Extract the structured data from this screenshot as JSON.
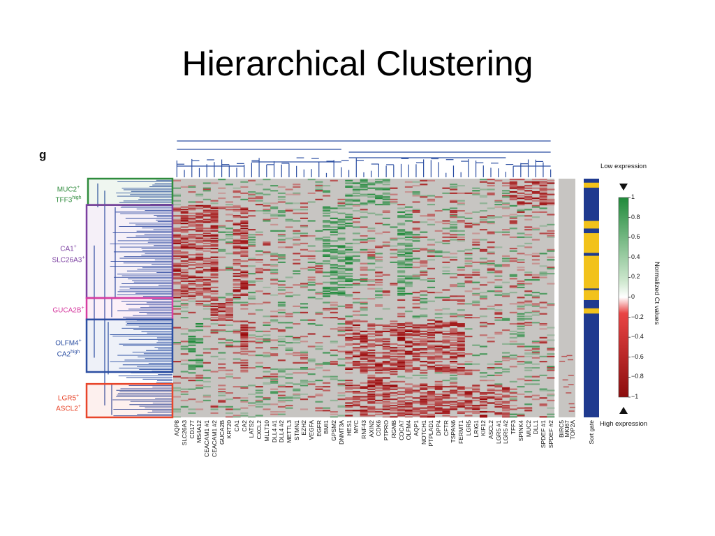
{
  "slide": {
    "title": "Hierarchical Clustering",
    "panel_letter": "g"
  },
  "clusters": [
    {
      "name_html": "MUC2<sup>+</sup><br>TFF3<sup>high</sup>",
      "color": "#2e8b3c",
      "row_range": [
        0,
        0.11
      ]
    },
    {
      "name_html": "CA1<sup>+</sup><br>SLC26A3<sup>+</sup>",
      "color": "#7b3fa0",
      "row_range": [
        0.11,
        0.5
      ]
    },
    {
      "name_html": "GUCA2B<sup>+</sup>",
      "color": "#d63ca0",
      "row_range": [
        0.5,
        0.59
      ]
    },
    {
      "name_html": "OLFM4<sup>+</sup><br>CA2<sup>high</sup>",
      "color": "#2b4ea2",
      "row_range": [
        0.59,
        0.81
      ]
    },
    {
      "name_html": "LGR5<sup>+</sup><br>ASCL2<sup>+</sup>",
      "color": "#e8452a",
      "row_range": [
        0.86,
        1.0
      ]
    }
  ],
  "chart_data": {
    "type": "heatmap",
    "title": "",
    "genes": [
      "AQP8",
      "SLC26A3",
      "CD177",
      "MS4A12",
      "CEACAM1 #1",
      "CEACAM1 #2",
      "GUCA2B",
      "KRT20",
      "CA1",
      "CA2",
      "LATS2",
      "CXCL2",
      "MLLT10",
      "DLL4 #1",
      "DLL4 #2",
      "METTL3",
      "STMN1",
      "EZH2",
      "VEGFA",
      "EGFR",
      "BMI1",
      "GPSM2",
      "DNMT3A",
      "HES1",
      "MYC",
      "RNF43",
      "AXIN2",
      "CDK6",
      "PTPRO",
      "RGMB",
      "CDCA7",
      "OLFM4",
      "AQP1",
      "NOTCH1",
      "PTPLAD1",
      "DPP4",
      "CFTR",
      "TSPAN6",
      "FERMT1",
      "LGR5",
      "LRIG1",
      "KIF12",
      "ASCL2",
      "LGR5 #1",
      "LGR5 #2",
      "TFF3",
      "SPINK4",
      "MUC2",
      "DLL1",
      "SPDEF #1",
      "SPDEF #2"
    ],
    "extra_genes": [
      "BIRC5",
      "MKI67",
      "TOP2A"
    ],
    "sort_gate_label": "Sort gate",
    "colorbar": {
      "label": "Normalized Ct values",
      "low_label": "Low expression",
      "high_label": "High expression",
      "ticks": [
        "1",
        "0.8",
        "0.6",
        "0.4",
        "0.2",
        "0",
        "−0.2",
        "−0.4",
        "−0.6",
        "−0.8",
        "−1"
      ],
      "range": [
        -1,
        1
      ],
      "colors": {
        "positive": "#1f8a3a",
        "zero": "#ffffff",
        "negative": "#8b0d0d",
        "background": "#c7c5c2"
      }
    },
    "sort_gate_colors": {
      "yellow": "#f2c21b",
      "blue": "#1f3a8f"
    }
  }
}
